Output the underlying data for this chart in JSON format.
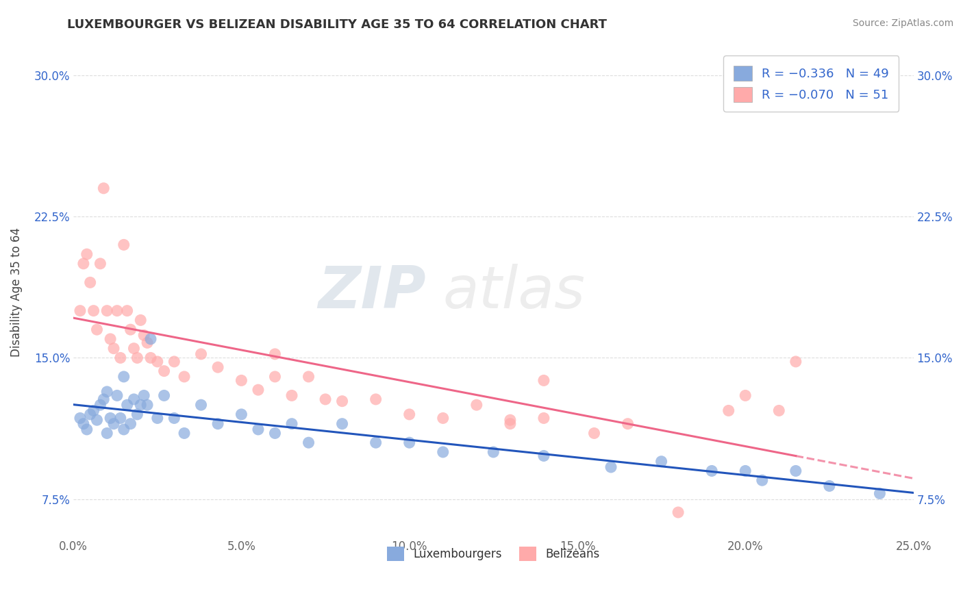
{
  "title": "LUXEMBOURGER VS BELIZEAN DISABILITY AGE 35 TO 64 CORRELATION CHART",
  "source": "Source: ZipAtlas.com",
  "ylabel": "Disability Age 35 to 64",
  "xlim": [
    0.0,
    0.25
  ],
  "ylim": [
    0.055,
    0.315
  ],
  "xticks": [
    0.0,
    0.05,
    0.1,
    0.15,
    0.2,
    0.25
  ],
  "xtick_labels": [
    "0.0%",
    "5.0%",
    "10.0%",
    "15.0%",
    "20.0%",
    "25.0%"
  ],
  "yticks": [
    0.075,
    0.15,
    0.225,
    0.3
  ],
  "ytick_labels": [
    "7.5%",
    "15.0%",
    "22.5%",
    "30.0%"
  ],
  "blue_color": "#88AADD",
  "pink_color": "#FFAAAA",
  "blue_line_color": "#2255BB",
  "pink_line_solid_color": "#EE6688",
  "pink_line_dash_color": "#EE6688",
  "legend_label_blue": "Luxembourgers",
  "legend_label_pink": "Belizeans",
  "blue_r": -0.336,
  "blue_n": 49,
  "pink_r": -0.07,
  "pink_n": 51,
  "watermark_zip": "ZIP",
  "watermark_atlas": "atlas",
  "background_color": "#FFFFFF",
  "grid_color": "#DDDDDD",
  "legend_text_color": "#3366CC",
  "blue_scatter_x": [
    0.002,
    0.003,
    0.004,
    0.005,
    0.006,
    0.007,
    0.008,
    0.009,
    0.01,
    0.01,
    0.011,
    0.012,
    0.013,
    0.014,
    0.015,
    0.015,
    0.016,
    0.017,
    0.018,
    0.019,
    0.02,
    0.021,
    0.022,
    0.023,
    0.025,
    0.027,
    0.03,
    0.033,
    0.038,
    0.043,
    0.05,
    0.055,
    0.06,
    0.065,
    0.07,
    0.08,
    0.09,
    0.1,
    0.11,
    0.125,
    0.14,
    0.16,
    0.175,
    0.19,
    0.2,
    0.205,
    0.215,
    0.225,
    0.24
  ],
  "blue_scatter_y": [
    0.118,
    0.115,
    0.112,
    0.12,
    0.122,
    0.117,
    0.125,
    0.128,
    0.132,
    0.11,
    0.118,
    0.115,
    0.13,
    0.118,
    0.14,
    0.112,
    0.125,
    0.115,
    0.128,
    0.12,
    0.125,
    0.13,
    0.125,
    0.16,
    0.118,
    0.13,
    0.118,
    0.11,
    0.125,
    0.115,
    0.12,
    0.112,
    0.11,
    0.115,
    0.105,
    0.115,
    0.105,
    0.105,
    0.1,
    0.1,
    0.098,
    0.092,
    0.095,
    0.09,
    0.09,
    0.085,
    0.09,
    0.082,
    0.078
  ],
  "pink_scatter_x": [
    0.002,
    0.003,
    0.004,
    0.005,
    0.006,
    0.007,
    0.008,
    0.009,
    0.01,
    0.011,
    0.012,
    0.013,
    0.014,
    0.015,
    0.016,
    0.017,
    0.018,
    0.019,
    0.02,
    0.021,
    0.022,
    0.023,
    0.025,
    0.027,
    0.03,
    0.033,
    0.038,
    0.043,
    0.05,
    0.055,
    0.06,
    0.065,
    0.07,
    0.075,
    0.08,
    0.09,
    0.1,
    0.11,
    0.12,
    0.13,
    0.14,
    0.155,
    0.165,
    0.18,
    0.195,
    0.2,
    0.21,
    0.215,
    0.13,
    0.14,
    0.06
  ],
  "pink_scatter_y": [
    0.175,
    0.2,
    0.205,
    0.19,
    0.175,
    0.165,
    0.2,
    0.24,
    0.175,
    0.16,
    0.155,
    0.175,
    0.15,
    0.21,
    0.175,
    0.165,
    0.155,
    0.15,
    0.17,
    0.162,
    0.158,
    0.15,
    0.148,
    0.143,
    0.148,
    0.14,
    0.152,
    0.145,
    0.138,
    0.133,
    0.152,
    0.13,
    0.14,
    0.128,
    0.127,
    0.128,
    0.12,
    0.118,
    0.125,
    0.117,
    0.118,
    0.11,
    0.115,
    0.068,
    0.122,
    0.13,
    0.122,
    0.148,
    0.115,
    0.138,
    0.14
  ]
}
